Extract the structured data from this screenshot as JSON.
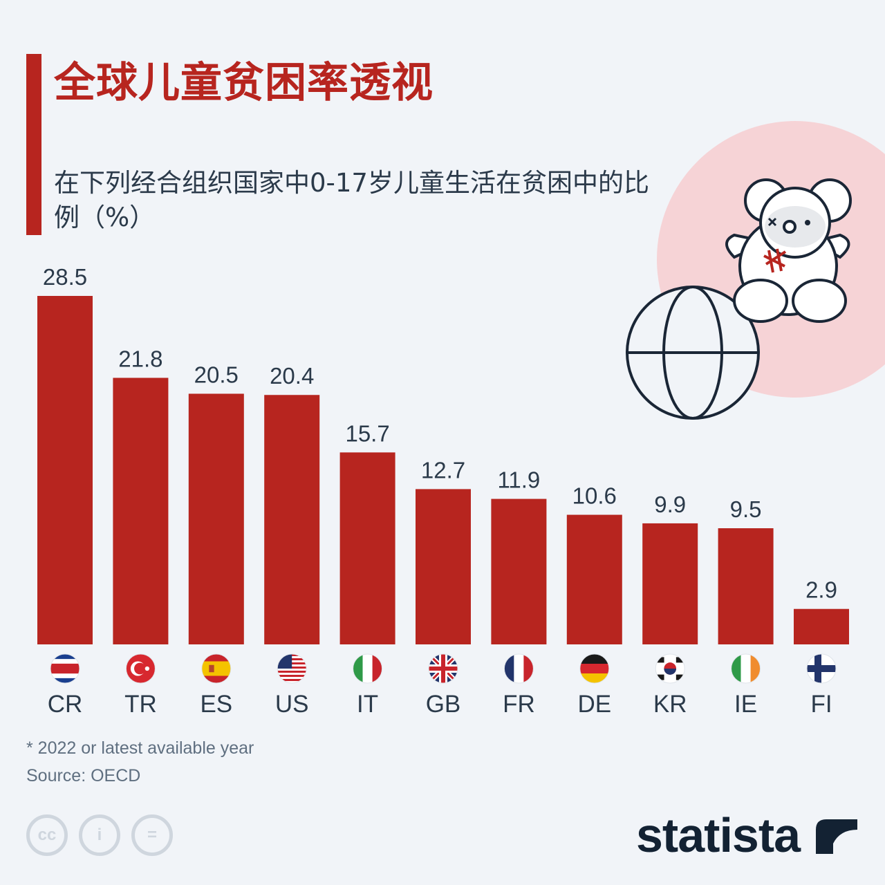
{
  "header": {
    "title": "全球儿童贫困率透视",
    "subtitle": "在下列经合组织国家中0-17岁儿童生活在贫困中的比例（%）"
  },
  "colors": {
    "accent": "#b7251f",
    "bar": "#b7251f",
    "text": "#2b3a4a",
    "background": "#f1f4f8",
    "illustration_circle": "#f6d3d6"
  },
  "chart_data": {
    "type": "bar",
    "categories": [
      "CR",
      "TR",
      "ES",
      "US",
      "IT",
      "GB",
      "FR",
      "DE",
      "KR",
      "IE",
      "FI"
    ],
    "values": [
      28.5,
      21.8,
      20.5,
      20.4,
      15.7,
      12.7,
      11.9,
      10.6,
      9.9,
      9.5,
      2.9
    ],
    "value_labels": [
      "28.5",
      "21.8",
      "20.5",
      "20.4",
      "15.7",
      "12.7",
      "11.9",
      "10.6",
      "9.9",
      "9.5",
      "2.9"
    ],
    "flags": [
      "flag-costa-rica-icon",
      "flag-turkey-icon",
      "flag-spain-icon",
      "flag-us-icon",
      "flag-italy-icon",
      "flag-uk-icon",
      "flag-france-icon",
      "flag-germany-icon",
      "flag-korea-icon",
      "flag-ireland-icon",
      "flag-finland-icon"
    ],
    "title": "全球儿童贫困率透视",
    "xlabel": "",
    "ylabel": "",
    "ylim": [
      0,
      28.5
    ],
    "grid": false,
    "legend": "none"
  },
  "footer": {
    "footnote": "* 2022 or latest available year",
    "source": "Source: OECD",
    "brand": "statista",
    "license_icons": [
      "cc-icon",
      "attribution-icon",
      "no-derivatives-icon"
    ],
    "license_labels": [
      "cc",
      "i",
      "="
    ]
  }
}
